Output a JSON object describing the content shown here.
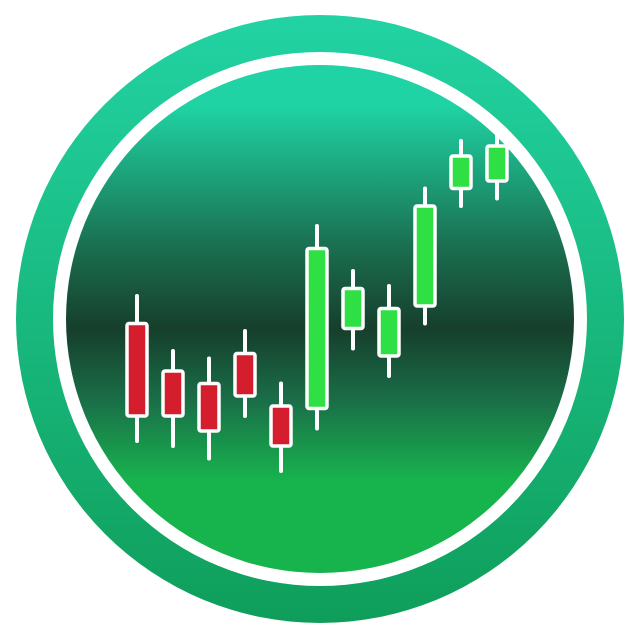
{
  "logo": {
    "icon": "candlestick-chart-icon",
    "colors": {
      "background": "#ffffff",
      "outer_ring_top": "#22d3a3",
      "outer_ring_bottom": "#0f9e5a",
      "inner_ring": "#ffffff",
      "disc_top": "#1fd3a4",
      "disc_mid": "#163f2c",
      "disc_bottom": "#17b44e",
      "candle_border": "#ffffff",
      "bearish": "#d51e2d",
      "bullish": "#2ee043"
    }
  },
  "candles": [
    {
      "direction": "down",
      "open": 6.9,
      "close": 3.2,
      "high": 8.0,
      "low": 2.2
    },
    {
      "direction": "down",
      "open": 5.0,
      "close": 3.2,
      "high": 5.8,
      "low": 2.0
    },
    {
      "direction": "down",
      "open": 4.5,
      "close": 2.6,
      "high": 5.5,
      "low": 1.5
    },
    {
      "direction": "down",
      "open": 5.7,
      "close": 4.0,
      "high": 6.6,
      "low": 3.2
    },
    {
      "direction": "down",
      "open": 3.6,
      "close": 2.0,
      "high": 4.5,
      "low": 1.0
    },
    {
      "direction": "up",
      "open": 3.5,
      "close": 9.9,
      "high": 10.8,
      "low": 2.7
    },
    {
      "direction": "up",
      "open": 6.7,
      "close": 8.3,
      "high": 9.0,
      "low": 5.9
    },
    {
      "direction": "up",
      "open": 5.6,
      "close": 7.5,
      "high": 8.4,
      "low": 4.8
    },
    {
      "direction": "up",
      "open": 7.6,
      "close": 11.6,
      "high": 12.3,
      "low": 6.9
    },
    {
      "direction": "up",
      "open": 12.3,
      "close": 13.6,
      "high": 14.2,
      "low": 11.6
    },
    {
      "direction": "up",
      "open": 12.6,
      "close": 14.0,
      "high": 14.8,
      "low": 11.9
    }
  ]
}
